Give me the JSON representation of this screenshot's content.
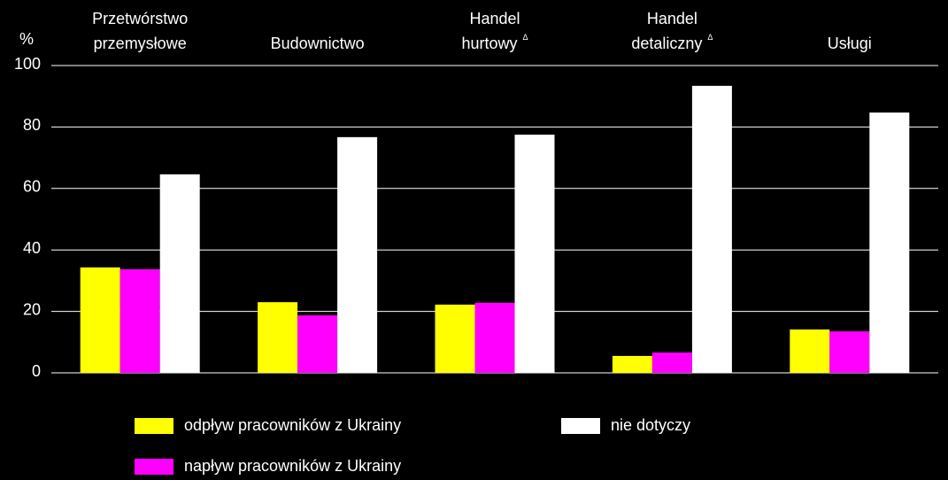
{
  "chart_data": {
    "type": "bar",
    "y_label": "%",
    "categories": [
      [
        "Przetwórstwo",
        "przemysłowe"
      ],
      [
        "Budownictwo"
      ],
      [
        "Handel",
        "hurtowy"
      ],
      [
        "Handel",
        "detaliczny"
      ],
      [
        "Usługi"
      ]
    ],
    "category_notes": [
      null,
      null,
      "Δ",
      "Δ",
      null
    ],
    "series": [
      {
        "name": "odpływ pracowników z Ukrainy",
        "color": "#ffff00",
        "values": [
          34.3,
          23,
          22.2,
          5.5,
          14.1
        ]
      },
      {
        "name": "napływ pracowników z Ukrainy",
        "color": "#ff00ff",
        "values": [
          33.7,
          18.7,
          22.8,
          6.6,
          13.5
        ]
      },
      {
        "name": "nie dotyczy",
        "color": "#ffffff",
        "values": [
          64.6,
          76.7,
          77.5,
          93.4,
          84.7
        ]
      }
    ],
    "ylim": [
      0,
      100
    ],
    "yticks": [
      0,
      20,
      40,
      60,
      80,
      100
    ],
    "grid": true
  }
}
